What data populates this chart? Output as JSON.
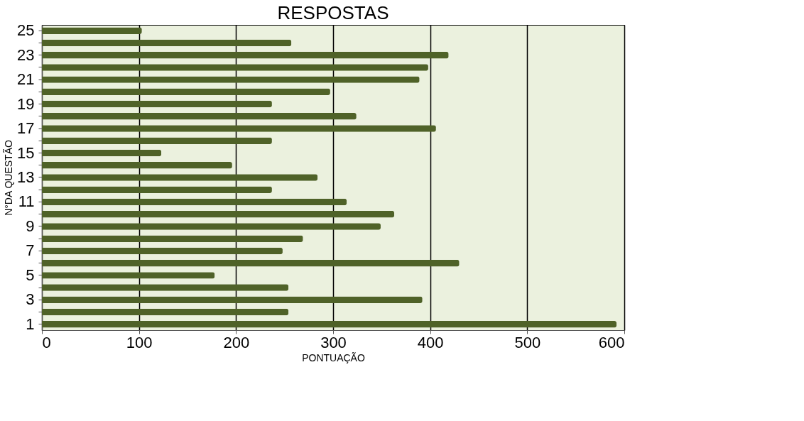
{
  "chart_data": {
    "type": "bar",
    "orientation": "horizontal",
    "title": "RESPOSTAS",
    "xlabel": "PONTUAÇÃO",
    "ylabel": "N°DA QUESTÃO",
    "categories": [
      "25",
      null,
      "23",
      null,
      "21",
      null,
      "19",
      null,
      "17",
      null,
      "15",
      null,
      "13",
      null,
      "11",
      null,
      "9",
      null,
      "7",
      null,
      "5",
      null,
      "3",
      null,
      "1"
    ],
    "series": [
      {
        "color": "#4f6228",
        "values": [
          103,
          257,
          419,
          398,
          389,
          297,
          237,
          324,
          406,
          237,
          123,
          196,
          284,
          237,
          314,
          363,
          349,
          269,
          248,
          430,
          178,
          254,
          392,
          254,
          592
        ]
      }
    ],
    "xlim": [
      0,
      600
    ],
    "xticks": [
      0,
      100,
      200,
      300,
      400,
      500,
      600
    ],
    "grid": "x"
  }
}
